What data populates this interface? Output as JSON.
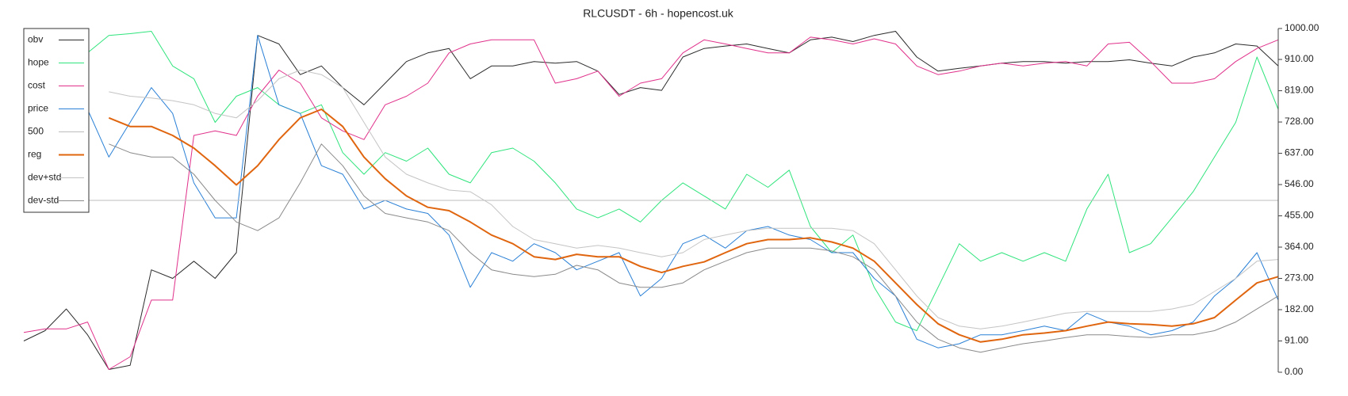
{
  "chart_data": {
    "type": "line",
    "title": "RLCUSDT - 6h - hopencost.uk",
    "ylim": [
      0,
      1000
    ],
    "yticks": [
      {
        "value": 0,
        "label": "0.00"
      },
      {
        "value": 91,
        "label": "91.00"
      },
      {
        "value": 182,
        "label": "182.00"
      },
      {
        "value": 273,
        "label": "273.00"
      },
      {
        "value": 364,
        "label": "364.00"
      },
      {
        "value": 455,
        "label": "455.00"
      },
      {
        "value": 546,
        "label": "546.00"
      },
      {
        "value": 637,
        "label": "637.00"
      },
      {
        "value": 728,
        "label": "728.00"
      },
      {
        "value": 819,
        "label": "819.00"
      },
      {
        "value": 910,
        "label": "910.00"
      },
      {
        "value": 1000,
        "label": "1000.00"
      }
    ],
    "legend": "top-left",
    "series": [
      {
        "name": "obv",
        "color": "#2b2b2b",
        "width": 1,
        "values": [
          91,
          121,
          184,
          109,
          8,
          20,
          298,
          273,
          323,
          273,
          348,
          980,
          955,
          866,
          891,
          828,
          778,
          841,
          904,
          929,
          942,
          854,
          891,
          891,
          904,
          899,
          904,
          876,
          808,
          828,
          820,
          917,
          942,
          949,
          955,
          942,
          929,
          967,
          975,
          962,
          980,
          992,
          917,
          876,
          884,
          891,
          899,
          904,
          904,
          899,
          904,
          904,
          909,
          899,
          891,
          917,
          929,
          955,
          949,
          891
        ]
      },
      {
        "name": "hope",
        "color": "#2fe47c",
        "width": 1,
        "values": [
          null,
          null,
          null,
          929,
          980,
          985,
          992,
          891,
          854,
          727,
          803,
          828,
          778,
          753,
          778,
          639,
          576,
          639,
          614,
          652,
          576,
          551,
          639,
          652,
          614,
          551,
          475,
          449,
          475,
          437,
          500,
          551,
          513,
          475,
          576,
          538,
          588,
          424,
          348,
          399,
          247,
          146,
          121,
          247,
          374,
          323,
          348,
          323,
          348,
          323,
          475,
          576,
          348,
          374,
          449,
          525,
          626,
          727,
          917,
          765
        ]
      },
      {
        "name": "cost",
        "color": "#e0308a",
        "width": 1,
        "values": [
          116,
          126,
          126,
          146,
          8,
          45,
          210,
          210,
          689,
          702,
          689,
          803,
          879,
          841,
          740,
          702,
          677,
          778,
          803,
          841,
          929,
          955,
          967,
          967,
          967,
          841,
          854,
          876,
          803,
          841,
          854,
          929,
          967,
          955,
          942,
          929,
          929,
          975,
          967,
          955,
          970,
          955,
          891,
          866,
          876,
          891,
          899,
          891,
          899,
          904,
          891,
          955,
          960,
          904,
          841,
          841,
          854,
          904,
          942,
          967
        ]
      },
      {
        "name": "price",
        "color": "#2a80d6",
        "width": 1,
        "values": [
          null,
          null,
          null,
          765,
          626,
          727,
          828,
          753,
          551,
          449,
          449,
          980,
          778,
          753,
          601,
          576,
          475,
          500,
          475,
          462,
          399,
          247,
          348,
          323,
          374,
          348,
          298,
          323,
          348,
          222,
          273,
          374,
          399,
          361,
          412,
          424,
          399,
          386,
          348,
          348,
          273,
          222,
          96,
          71,
          83,
          109,
          109,
          121,
          134,
          121,
          172,
          146,
          134,
          109,
          121,
          146,
          222,
          273,
          348,
          210
        ]
      },
      {
        "name": "500",
        "color": "#bdbdbd",
        "width": 1,
        "values": [
          500,
          500,
          500,
          500,
          500,
          500,
          500,
          500,
          500,
          500,
          500,
          500,
          500,
          500,
          500,
          500,
          500,
          500,
          500,
          500,
          500,
          500,
          500,
          500,
          500,
          500,
          500,
          500,
          500,
          500,
          500,
          500,
          500,
          500,
          500,
          500,
          500,
          500,
          500,
          500,
          500,
          500,
          500,
          500,
          500,
          500,
          500,
          500,
          500,
          500,
          500,
          500,
          500,
          500,
          500,
          500,
          500,
          500,
          500,
          500
        ]
      },
      {
        "name": "reg",
        "color": "#e0650f",
        "width": 2,
        "values": [
          null,
          null,
          null,
          null,
          740,
          715,
          715,
          689,
          652,
          601,
          545,
          601,
          677,
          740,
          765,
          715,
          626,
          563,
          513,
          480,
          470,
          437,
          399,
          374,
          336,
          328,
          343,
          336,
          336,
          308,
          290,
          308,
          321,
          348,
          374,
          386,
          386,
          391,
          379,
          361,
          323,
          260,
          197,
          141,
          109,
          88,
          96,
          109,
          114,
          121,
          134,
          146,
          141,
          139,
          134,
          141,
          159,
          210,
          260,
          278
        ]
      },
      {
        "name": "dev+std",
        "color": "#c4c4c4",
        "width": 1,
        "values": [
          null,
          null,
          null,
          null,
          816,
          803,
          798,
          790,
          778,
          753,
          740,
          790,
          854,
          879,
          866,
          828,
          727,
          626,
          576,
          551,
          530,
          525,
          487,
          424,
          386,
          374,
          361,
          369,
          361,
          348,
          336,
          348,
          386,
          399,
          412,
          419,
          419,
          419,
          419,
          412,
          374,
          298,
          222,
          159,
          134,
          126,
          134,
          146,
          159,
          172,
          177,
          177,
          177,
          177,
          184,
          197,
          235,
          273,
          323,
          328
        ]
      },
      {
        "name": "dev-std",
        "color": "#8a8a8a",
        "width": 1,
        "values": [
          null,
          null,
          null,
          null,
          664,
          639,
          626,
          626,
          576,
          500,
          437,
          412,
          449,
          551,
          664,
          601,
          513,
          462,
          449,
          437,
          412,
          348,
          298,
          285,
          278,
          285,
          311,
          298,
          260,
          247,
          247,
          260,
          298,
          323,
          348,
          361,
          361,
          361,
          353,
          336,
          298,
          222,
          146,
          96,
          71,
          58,
          71,
          83,
          91,
          101,
          109,
          109,
          104,
          101,
          109,
          109,
          121,
          146,
          184,
          222
        ]
      }
    ]
  }
}
